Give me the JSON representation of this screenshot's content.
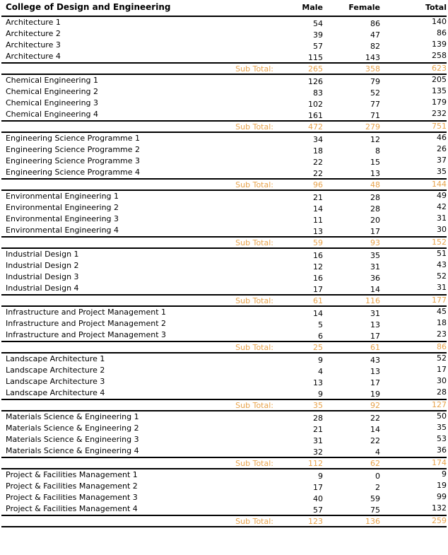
{
  "colors": {
    "subtotal_text": "#E8A34C",
    "rule_lines": "#000000",
    "body_text": "#000000"
  },
  "chart_data": {
    "type": "table",
    "title": "College of Design and Engineering",
    "columns": [
      "College of Design and Engineering",
      "Male",
      "Female",
      "Total"
    ],
    "subtotal_label": "Sub Total:",
    "groups": [
      {
        "rows": [
          [
            "Architecture 1",
            54,
            86,
            140
          ],
          [
            "Architecture 2",
            39,
            47,
            86
          ],
          [
            "Architecture 3",
            57,
            82,
            139
          ],
          [
            "Architecture 4",
            115,
            143,
            258
          ]
        ],
        "subtotal": [
          265,
          358,
          623
        ]
      },
      {
        "rows": [
          [
            "Chemical Engineering 1",
            126,
            79,
            205
          ],
          [
            "Chemical Engineering 2",
            83,
            52,
            135
          ],
          [
            "Chemical Engineering 3",
            102,
            77,
            179
          ],
          [
            "Chemical Engineering 4",
            161,
            71,
            232
          ]
        ],
        "subtotal": [
          472,
          279,
          751
        ]
      },
      {
        "rows": [
          [
            "Engineering Science Programme 1",
            34,
            12,
            46
          ],
          [
            "Engineering Science Programme 2",
            18,
            8,
            26
          ],
          [
            "Engineering Science Programme 3",
            22,
            15,
            37
          ],
          [
            "Engineering Science Programme 4",
            22,
            13,
            35
          ]
        ],
        "subtotal": [
          96,
          48,
          144
        ]
      },
      {
        "rows": [
          [
            "Environmental Engineering 1",
            21,
            28,
            49
          ],
          [
            "Environmental Engineering 2",
            14,
            28,
            42
          ],
          [
            "Environmental Engineering 3",
            11,
            20,
            31
          ],
          [
            "Environmental Engineering 4",
            13,
            17,
            30
          ]
        ],
        "subtotal": [
          59,
          93,
          152
        ]
      },
      {
        "rows": [
          [
            "Industrial Design 1",
            16,
            35,
            51
          ],
          [
            "Industrial Design 2",
            12,
            31,
            43
          ],
          [
            "Industrial Design 3",
            16,
            36,
            52
          ],
          [
            "Industrial Design 4",
            17,
            14,
            31
          ]
        ],
        "subtotal": [
          61,
          116,
          177
        ]
      },
      {
        "rows": [
          [
            "Infrastructure and Project Management 1",
            14,
            31,
            45
          ],
          [
            "Infrastructure and Project Management 2",
            5,
            13,
            18
          ],
          [
            "Infrastructure and Project Management 3",
            6,
            17,
            23
          ]
        ],
        "subtotal": [
          25,
          61,
          86
        ]
      },
      {
        "rows": [
          [
            "Landscape Architecture 1",
            9,
            43,
            52
          ],
          [
            "Landscape Architecture 2",
            4,
            13,
            17
          ],
          [
            "Landscape Architecture 3",
            13,
            17,
            30
          ],
          [
            "Landscape Architecture 4",
            9,
            19,
            28
          ]
        ],
        "subtotal": [
          35,
          92,
          127
        ]
      },
      {
        "rows": [
          [
            "Materials Science & Engineering 1",
            28,
            22,
            50
          ],
          [
            "Materials Science & Engineering 2",
            21,
            14,
            35
          ],
          [
            "Materials Science & Engineering 3",
            31,
            22,
            53
          ],
          [
            "Materials Science & Engineering 4",
            32,
            4,
            36
          ]
        ],
        "subtotal": [
          112,
          62,
          174
        ]
      },
      {
        "rows": [
          [
            "Project & Facilities Management 1",
            9,
            0,
            9
          ],
          [
            "Project & Facilities Management 2",
            17,
            2,
            19
          ],
          [
            "Project & Facilities Management 3",
            40,
            59,
            99
          ],
          [
            "Project & Facilities Management 4",
            57,
            75,
            132
          ]
        ],
        "subtotal": [
          123,
          136,
          259
        ]
      }
    ]
  }
}
